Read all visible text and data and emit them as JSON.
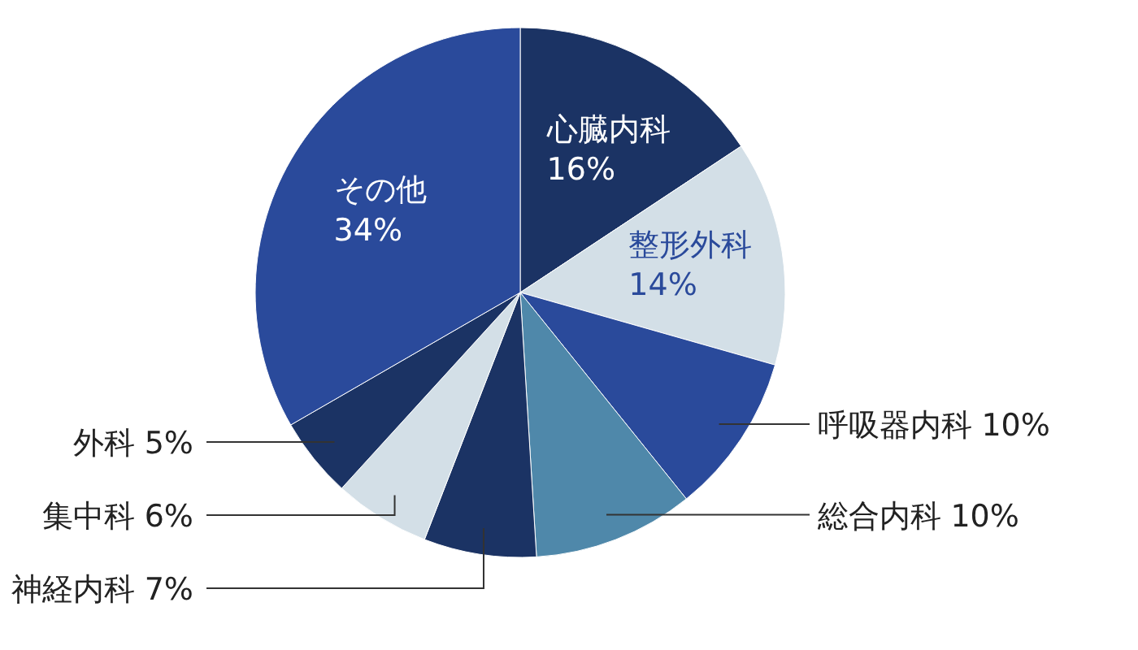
{
  "chart_data": {
    "type": "pie",
    "categories": [
      "心臓内科",
      "整形外科",
      "呼吸器内科",
      "総合内科",
      "神経内科",
      "集中科",
      "外科",
      "その他"
    ],
    "values": [
      16,
      14,
      10,
      10,
      7,
      6,
      5,
      34
    ],
    "value_labels": [
      "16%",
      "14%",
      "10%",
      "10%",
      "7%",
      "6%",
      "5%",
      "34%"
    ],
    "colors": [
      "#1b3364",
      "#d3dfe7",
      "#2a4a9b",
      "#4f88aa",
      "#1b3364",
      "#d3dfe7",
      "#1b3364",
      "#2a4a9b"
    ]
  }
}
